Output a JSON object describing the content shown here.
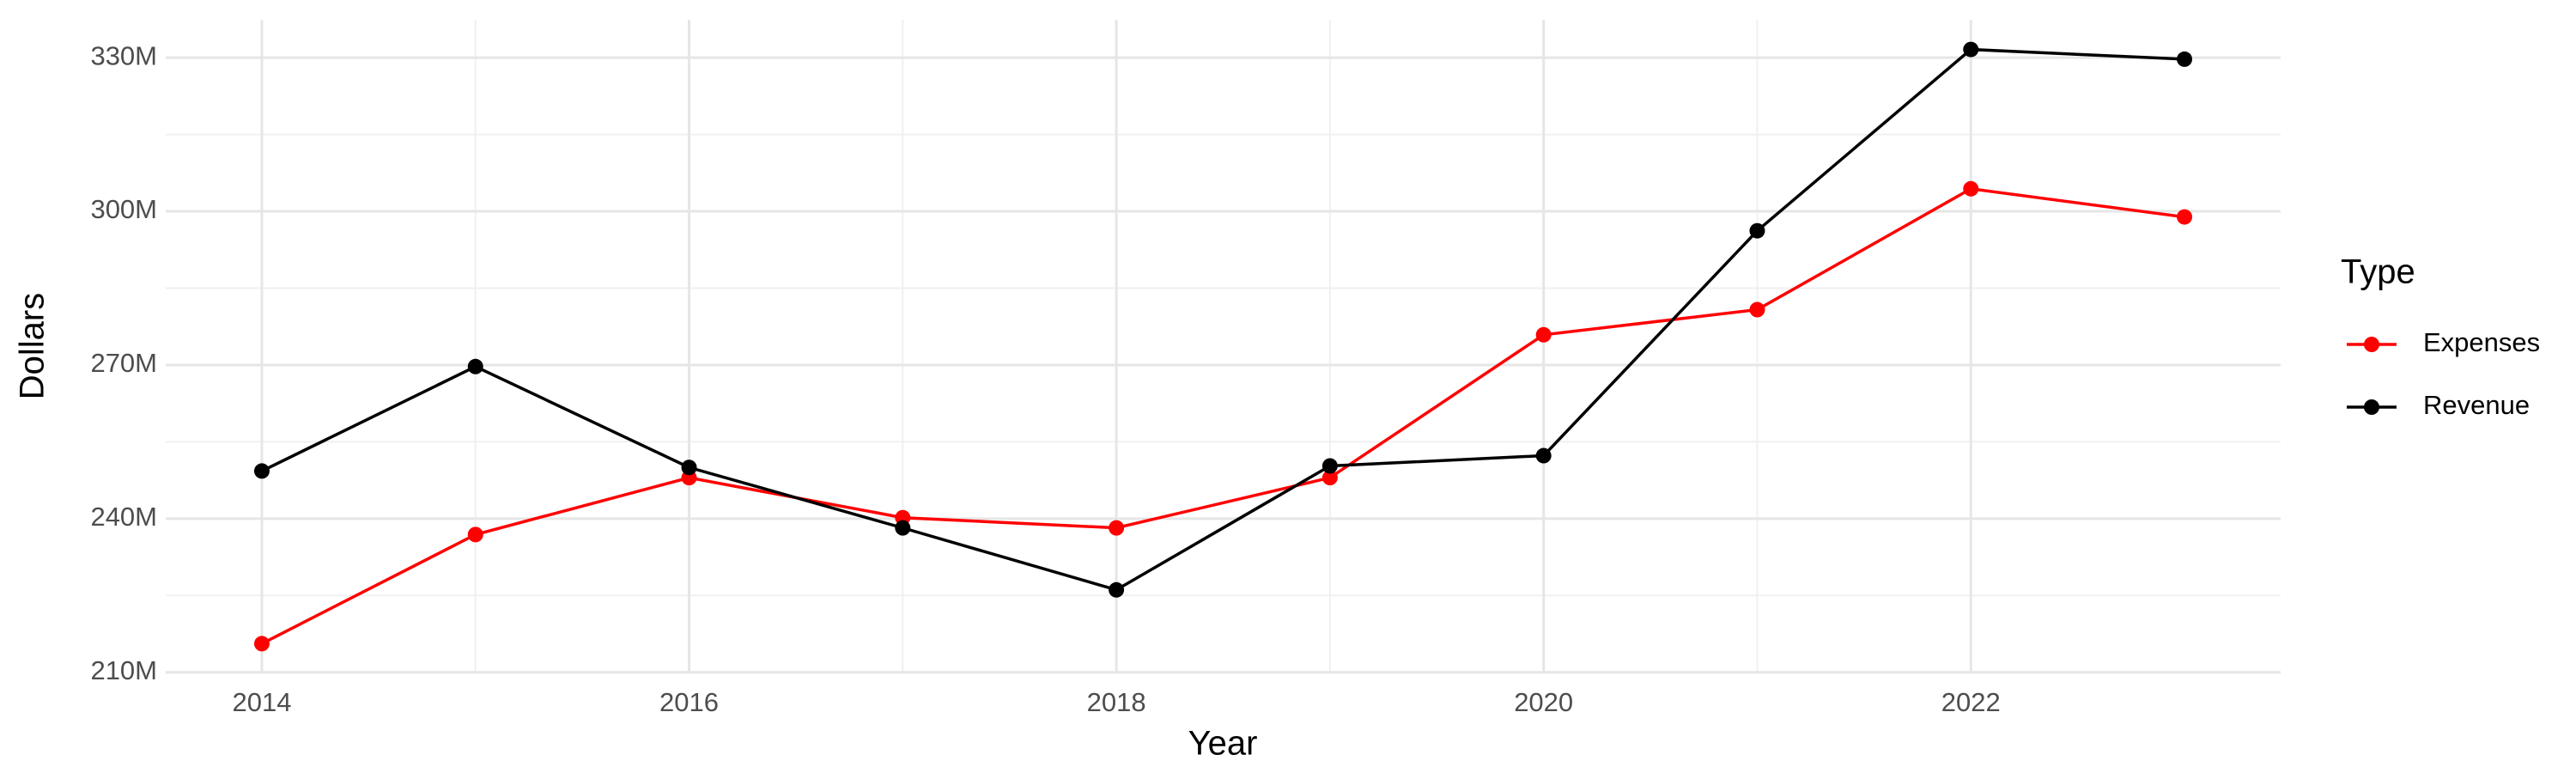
{
  "chart_data": {
    "type": "line",
    "x_label": "Year",
    "y_label": "Dollars",
    "legend_title": "Type",
    "x": [
      2014,
      2015,
      2016,
      2017,
      2018,
      2019,
      2020,
      2021,
      2022,
      2023
    ],
    "series": [
      {
        "name": "Expenses",
        "color": "#ff0000",
        "values": [
          215600000,
          236900000,
          248000000,
          240200000,
          238200000,
          248000000,
          275900000,
          280800000,
          304400000,
          298900000
        ]
      },
      {
        "name": "Revenue",
        "color": "#000000",
        "values": [
          249300000,
          269700000,
          250000000,
          238200000,
          226100000,
          250300000,
          252300000,
          296200000,
          331600000,
          329700000
        ]
      }
    ],
    "xlim": [
      2013.55,
      2023.45
    ],
    "xticks": [
      2014,
      2016,
      2018,
      2020,
      2022
    ],
    "ylim": [
      209800000,
      337400000
    ],
    "yticks": [
      {
        "value": 210000000,
        "label": "210M"
      },
      {
        "value": 240000000,
        "label": "240M"
      },
      {
        "value": 270000000,
        "label": "270M"
      },
      {
        "value": 300000000,
        "label": "300M"
      },
      {
        "value": 330000000,
        "label": "330M"
      }
    ],
    "grid": true,
    "legend_position": "right"
  }
}
